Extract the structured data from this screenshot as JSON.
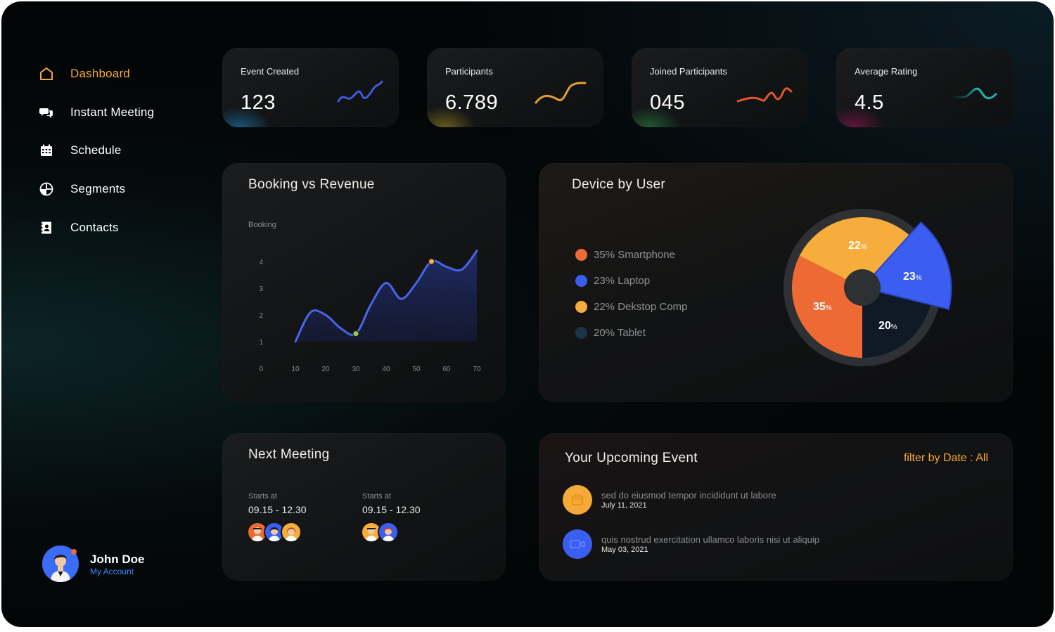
{
  "sidebar": {
    "items": [
      {
        "label": "Dashboard",
        "icon": "home-icon",
        "active": true
      },
      {
        "label": "Instant Meeting",
        "icon": "chat-bubbles-icon"
      },
      {
        "label": "Schedule",
        "icon": "calendar-icon"
      },
      {
        "label": "Segments",
        "icon": "pie-segments-icon"
      },
      {
        "label": "Contacts",
        "icon": "contact-book-icon"
      }
    ],
    "active_color": "#f5a936"
  },
  "profile": {
    "name": "John Doe",
    "account_link": "My Account"
  },
  "stats": [
    {
      "label": "Event Created",
      "value": "123",
      "color": "#3d5bd9"
    },
    {
      "label": "Participants",
      "value": "6.789",
      "color": "#e0a038"
    },
    {
      "label": "Joined Participants",
      "value": "045",
      "color": "#e0582f"
    },
    {
      "label": "Average Rating",
      "value": "4.5",
      "color": "#20b6b0"
    }
  ],
  "booking": {
    "title": "Booking vs Revenue",
    "ylabel": "Booking",
    "highlight_colors": {
      "start": "#9acb47",
      "peak": "#f5b14a"
    }
  },
  "chart_data": {
    "type": "line",
    "title": "Booking vs Revenue",
    "ylabel": "Booking",
    "xlabel": "",
    "x_ticks": [
      "10",
      "20",
      "30",
      "40",
      "50",
      "60",
      "70"
    ],
    "y_ticks": [
      "0",
      "1",
      "2",
      "3",
      "4"
    ],
    "xlim": [
      0,
      70
    ],
    "ylim": [
      0,
      4
    ],
    "x": [
      10,
      15,
      20,
      25,
      30,
      35,
      40,
      45,
      50,
      55,
      60,
      65,
      70
    ],
    "y": [
      1.0,
      2.1,
      2.0,
      1.5,
      1.3,
      2.4,
      3.2,
      2.6,
      3.2,
      4.0,
      3.8,
      3.7,
      4.4
    ],
    "markers": [
      {
        "x": 30,
        "y": 1.3
      },
      {
        "x": 55,
        "y": 4.0
      }
    ],
    "line_color": "#4a63e8",
    "grid": false
  },
  "device": {
    "title": "Device by User",
    "legend": [
      {
        "label": "35% Smartphone",
        "color": "#ee6a35"
      },
      {
        "label": "23% Laptop",
        "color": "#3b5ef0"
      },
      {
        "label": "22% Dekstop Comp",
        "color": "#f6ad3b"
      },
      {
        "label": "20% Tablet",
        "color": "#1c3448"
      }
    ],
    "slices": [
      {
        "big": "22",
        "small": "%"
      },
      {
        "big": "23",
        "small": "%"
      },
      {
        "big": "20",
        "small": "%"
      },
      {
        "big": "35",
        "small": "%"
      }
    ]
  },
  "device_chart_data": {
    "type": "pie",
    "categories": [
      "Smartphone",
      "Laptop",
      "Dekstop Comp",
      "Tablet"
    ],
    "values": [
      35,
      23,
      22,
      20
    ]
  },
  "next_meeting": {
    "title": "Next Meeting",
    "slots": [
      {
        "starts": "Starts at",
        "time": "09.15 - 12.30"
      },
      {
        "starts": "Starts at",
        "time": "09.15 - 12.30"
      }
    ]
  },
  "upcoming": {
    "title": "Your Upcoming Event",
    "filter": "filter by Date : All",
    "events": [
      {
        "text": "sed do eiusmod tempor incididunt ut labore",
        "date": "July 11, 2021",
        "icon": "calendar-icon",
        "color": "#f5a936"
      },
      {
        "text": "quis nostrud exercitation ullamco laboris nisi ut aliquip",
        "date": "May 03, 2021",
        "icon": "video-camera-icon",
        "color": "#3b5ef0"
      }
    ]
  }
}
